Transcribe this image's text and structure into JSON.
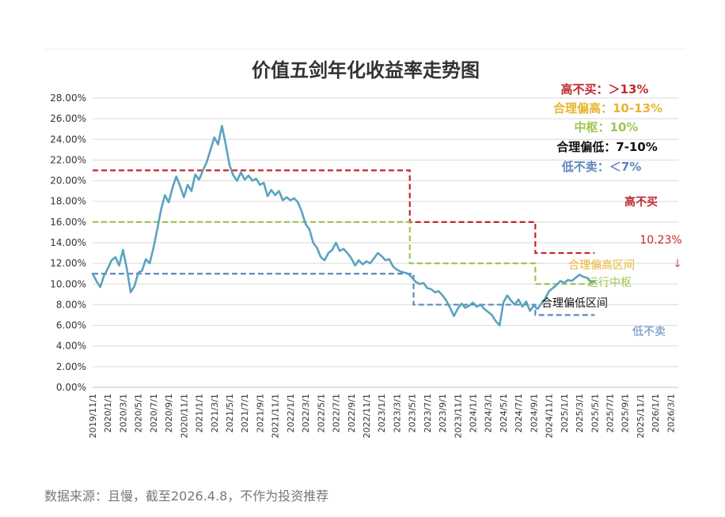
{
  "colors": {
    "background": "#ffffff",
    "grid": "#d9d9d9",
    "line": "#5ba3bf",
    "red": "#c0282d",
    "orange": "#e8b530",
    "green": "#9fc651",
    "blue": "#5e86bd",
    "black": "#111111",
    "gray": "#777777",
    "pink": "#c65a5a"
  },
  "chart_data": {
    "type": "line",
    "title": "价值五剑年化收益率走势图",
    "ylim": [
      0,
      28
    ],
    "ytick_labels": [
      "0.00%",
      "2.00%",
      "4.00%",
      "6.00%",
      "8.00%",
      "10.00%",
      "12.00%",
      "14.00%",
      "16.00%",
      "18.00%",
      "20.00%",
      "22.00%",
      "24.00%",
      "26.00%",
      "28.00%"
    ],
    "xlim_months": [
      0,
      77
    ],
    "xtick_labels": [
      "2019/11/1",
      "2020/1/1",
      "2020/3/1",
      "2020/5/1",
      "2020/7/1",
      "2020/9/1",
      "2020/11/1",
      "2021/1/1",
      "2021/3/1",
      "2021/5/1",
      "2021/7/1",
      "2021/9/1",
      "2021/11/1",
      "2022/1/1",
      "2022/3/1",
      "2022/5/1",
      "2022/7/1",
      "2022/9/1",
      "2022/11/1",
      "2023/1/1",
      "2023/3/1",
      "2023/5/1",
      "2023/7/1",
      "2023/9/1",
      "2023/11/1",
      "2024/1/1",
      "2024/3/1",
      "2024/5/1",
      "2024/7/1",
      "2024/9/1",
      "2024/11/1",
      "2025/1/1",
      "2025/3/1",
      "2025/5/1",
      "2025/7/1",
      "2025/9/1",
      "2025/11/1",
      "2026/1/1",
      "2026/3/1"
    ],
    "series": [
      {
        "name": "年化收益率",
        "unit": "%",
        "points": [
          [
            0,
            11.0
          ],
          [
            0.5,
            10.3
          ],
          [
            1,
            9.7
          ],
          [
            1.5,
            10.8
          ],
          [
            2,
            11.5
          ],
          [
            2.5,
            12.3
          ],
          [
            3,
            12.6
          ],
          [
            3.5,
            11.8
          ],
          [
            4,
            13.3
          ],
          [
            4.5,
            11.5
          ],
          [
            5,
            9.2
          ],
          [
            5.5,
            9.8
          ],
          [
            6,
            11.1
          ],
          [
            6.5,
            11.3
          ],
          [
            7,
            12.4
          ],
          [
            7.5,
            12.0
          ],
          [
            8,
            13.5
          ],
          [
            8.5,
            15.3
          ],
          [
            9,
            17.2
          ],
          [
            9.5,
            18.6
          ],
          [
            10,
            17.9
          ],
          [
            10.5,
            19.3
          ],
          [
            11,
            20.4
          ],
          [
            11.5,
            19.5
          ],
          [
            12,
            18.4
          ],
          [
            12.5,
            19.6
          ],
          [
            13,
            19.0
          ],
          [
            13.5,
            20.6
          ],
          [
            14,
            20.1
          ],
          [
            14.5,
            21.0
          ],
          [
            15,
            21.8
          ],
          [
            15.5,
            23.0
          ],
          [
            16,
            24.2
          ],
          [
            16.5,
            23.5
          ],
          [
            17,
            25.3
          ],
          [
            17.5,
            23.5
          ],
          [
            18,
            21.5
          ],
          [
            18.5,
            20.5
          ],
          [
            19,
            20.0
          ],
          [
            19.5,
            20.8
          ],
          [
            20,
            20.1
          ],
          [
            20.5,
            20.5
          ],
          [
            21,
            20.0
          ],
          [
            21.5,
            20.2
          ],
          [
            22,
            19.6
          ],
          [
            22.5,
            19.8
          ],
          [
            23,
            18.5
          ],
          [
            23.5,
            19.1
          ],
          [
            24,
            18.6
          ],
          [
            24.5,
            19.0
          ],
          [
            25,
            18.1
          ],
          [
            25.5,
            18.4
          ],
          [
            26,
            18.1
          ],
          [
            26.5,
            18.3
          ],
          [
            27,
            17.9
          ],
          [
            27.5,
            17.0
          ],
          [
            28,
            15.8
          ],
          [
            28.5,
            15.3
          ],
          [
            29,
            14.0
          ],
          [
            29.5,
            13.5
          ],
          [
            30,
            12.6
          ],
          [
            30.5,
            12.3
          ],
          [
            31,
            13.0
          ],
          [
            31.5,
            13.3
          ],
          [
            32,
            14.0
          ],
          [
            32.5,
            13.2
          ],
          [
            33,
            13.4
          ],
          [
            33.5,
            13.0
          ],
          [
            34,
            12.5
          ],
          [
            34.5,
            11.8
          ],
          [
            35,
            12.3
          ],
          [
            35.5,
            11.9
          ],
          [
            36,
            12.2
          ],
          [
            36.5,
            12.0
          ],
          [
            37,
            12.5
          ],
          [
            37.5,
            13.0
          ],
          [
            38,
            12.7
          ],
          [
            38.5,
            12.3
          ],
          [
            39,
            12.4
          ],
          [
            39.5,
            11.7
          ],
          [
            40,
            11.4
          ],
          [
            40.5,
            11.2
          ],
          [
            41,
            11.1
          ],
          [
            41.5,
            11.0
          ],
          [
            42,
            10.6
          ],
          [
            42.5,
            10.2
          ],
          [
            43,
            10.0
          ],
          [
            43.5,
            10.1
          ],
          [
            44,
            9.6
          ],
          [
            44.5,
            9.5
          ],
          [
            45,
            9.2
          ],
          [
            45.5,
            9.3
          ],
          [
            46,
            8.9
          ],
          [
            46.5,
            8.4
          ],
          [
            47,
            7.7
          ],
          [
            47.5,
            6.9
          ],
          [
            48,
            7.6
          ],
          [
            48.5,
            8.1
          ],
          [
            49,
            7.7
          ],
          [
            49.5,
            7.9
          ],
          [
            50,
            8.2
          ],
          [
            50.5,
            7.8
          ],
          [
            51,
            8.0
          ],
          [
            51.5,
            7.6
          ],
          [
            52,
            7.3
          ],
          [
            52.5,
            7.0
          ],
          [
            53,
            6.4
          ],
          [
            53.5,
            6.0
          ],
          [
            54,
            8.2
          ],
          [
            54.5,
            8.9
          ],
          [
            55,
            8.4
          ],
          [
            55.5,
            8.0
          ],
          [
            56,
            8.5
          ],
          [
            56.5,
            7.8
          ],
          [
            57,
            8.3
          ],
          [
            57.5,
            7.4
          ],
          [
            58,
            7.9
          ],
          [
            58.5,
            7.6
          ],
          [
            59,
            8.1
          ],
          [
            59.5,
            8.6
          ],
          [
            60,
            9.3
          ],
          [
            60.5,
            9.6
          ],
          [
            61,
            9.9
          ],
          [
            61.5,
            10.3
          ],
          [
            62,
            10.1
          ],
          [
            62.5,
            10.4
          ],
          [
            63,
            10.3
          ],
          [
            63.5,
            10.6
          ],
          [
            64,
            10.9
          ],
          [
            64.5,
            10.7
          ],
          [
            65,
            10.6
          ],
          [
            65.5,
            10.2
          ],
          [
            66,
            10.23
          ]
        ]
      }
    ],
    "threshold_lines": [
      {
        "name": "高不买",
        "color_key": "red",
        "segments": [
          [
            0,
            41.7,
            21
          ],
          [
            41.7,
            58.2,
            16
          ],
          [
            58.2,
            66,
            13
          ]
        ]
      },
      {
        "name": "合理偏高区间",
        "color_key": "green",
        "segments": [
          [
            0,
            41.7,
            16
          ],
          [
            41.7,
            58.2,
            12
          ],
          [
            58.2,
            66,
            10
          ]
        ]
      },
      {
        "name": "低不卖",
        "color_key": "blue",
        "segments": [
          [
            0,
            42.2,
            11
          ],
          [
            42.2,
            58.2,
            8
          ],
          [
            58.2,
            66,
            7
          ]
        ]
      }
    ],
    "legend": [
      {
        "text": "高不买：＞13%",
        "color_key": "red"
      },
      {
        "text": "合理偏高：10-13%",
        "color_key": "orange"
      },
      {
        "text": "中枢：10%",
        "color_key": "green"
      },
      {
        "text": "合理偏低：7-10%",
        "color_key": "black"
      },
      {
        "text": "低不卖：＜7%",
        "color_key": "blue"
      }
    ],
    "annotations": {
      "high_no_buy": "高不买",
      "current_value": "10.23%",
      "arrow": "↓",
      "reasonable_high": "合理偏高区间",
      "running_center": "运行中枢",
      "reasonable_low": "合理偏低区间",
      "low_no_sell": "低不卖"
    }
  },
  "footer": {
    "source": "数据来源：且慢，截至2026.4.8，不作为投资推荐"
  }
}
